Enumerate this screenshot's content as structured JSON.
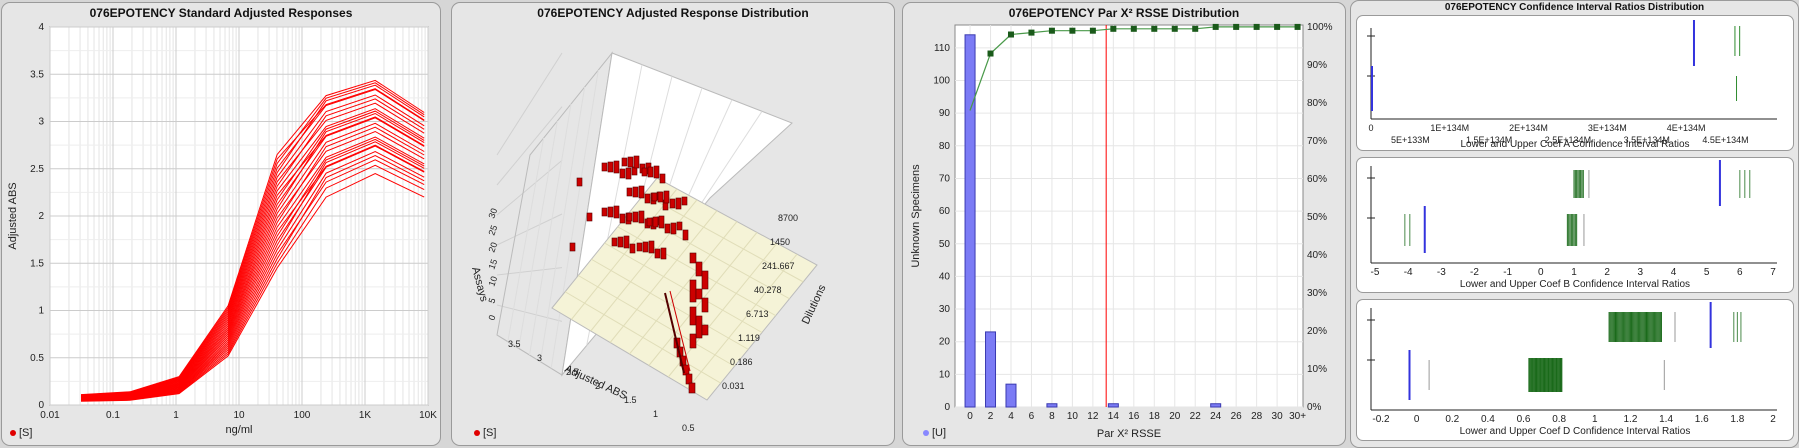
{
  "colors": {
    "red": "#ff0000",
    "blue": "#3333dd",
    "bar": "#7b7bf5",
    "green": "#2e8b2e",
    "darkgreen": "#1b6b1b",
    "panel": "#e6e6e6",
    "floor": "#f5f3d7"
  },
  "chart_data": [
    {
      "type": "line",
      "title": "076EPOTENCY Standard Adjusted Responses",
      "xlabel": "ng/ml",
      "ylabel": "Adjusted ABS",
      "xscale": "log",
      "xlim": [
        0.01,
        10000
      ],
      "ylim": [
        0,
        4
      ],
      "xticks": [
        "0.01",
        "0.1",
        "1",
        "10",
        "100",
        "1K",
        "10K"
      ],
      "yticks": [
        "0",
        "0.5",
        "1",
        "1.5",
        "2",
        "2.5",
        "3",
        "3.5",
        "4"
      ],
      "legend": "[S]",
      "x": [
        0.031,
        0.186,
        1.119,
        6.713,
        40.278,
        241.667,
        1450,
        8700
      ],
      "series_low": [
        0.04,
        0.05,
        0.12,
        0.52,
        1.45,
        2.2,
        2.45,
        2.2
      ],
      "series_high": [
        0.11,
        0.14,
        0.3,
        1.05,
        2.65,
        3.4,
        3.55,
        3.2
      ],
      "series_count": 26
    },
    {
      "type": "bar3d",
      "title": "076EPOTENCY Adjusted Response Distribution",
      "xlabel": "Adjusted ABS",
      "ylabel": "Dilutions",
      "zlabel": "Assays",
      "xticks": [
        "3.5",
        "3",
        "2.5",
        "2",
        "1.5",
        "1",
        "0.5"
      ],
      "yticks": [
        "0.031",
        "0.186",
        "1.119",
        "6.713",
        "40.278",
        "241.667",
        "1450",
        "8700"
      ],
      "zticks": [
        "0",
        "5",
        "10",
        "15",
        "20",
        "25",
        "30"
      ],
      "legend": "[S]"
    },
    {
      "type": "bar",
      "title": "076EPOTENCY Par X² RSSE Distribution",
      "xlabel": "Par X² RSSE",
      "ylabel": "Unknown Specimens",
      "categories": [
        "0",
        "2",
        "4",
        "6",
        "8",
        "10",
        "12",
        "14",
        "16",
        "18",
        "20",
        "22",
        "24",
        "26",
        "28",
        "30",
        "30+"
      ],
      "values": [
        114,
        23,
        7,
        0,
        1,
        0,
        0,
        1,
        0,
        0,
        0,
        0,
        1,
        0,
        0,
        0,
        0
      ],
      "cumulative_percent": [
        78,
        93,
        98,
        98.5,
        99,
        99,
        99,
        99.5,
        99.5,
        99.5,
        99.5,
        99.5,
        100,
        100,
        100,
        100,
        100
      ],
      "yticks": [
        "0",
        "10",
        "20",
        "30",
        "40",
        "50",
        "60",
        "70",
        "80",
        "90",
        "100",
        "110"
      ],
      "y2ticks": [
        "0%",
        "10%",
        "20%",
        "30%",
        "40%",
        "50%",
        "60%",
        "70%",
        "80%",
        "90%",
        "100%"
      ],
      "ylim": [
        0,
        117
      ],
      "threshold_x": 13.3,
      "legend": "[U]"
    },
    {
      "type": "strip",
      "title": "076EPOTENCY Confidence Interval Ratios Distribution",
      "panels": [
        {
          "xlabel": "Lower and Upper Coef A Confidence Interval Ratios",
          "ticks_top": [
            "0",
            "1E+134M",
            "2E+134M",
            "3E+134M",
            "4E+134M"
          ],
          "ticks_bottom": [
            "5E+133M",
            "1.5E+134M",
            "2.5E+134M",
            "3.5E+134M",
            "4.5E+134M"
          ],
          "blue_lines": [
            0.0,
            4.1
          ],
          "green_lines_upper": [
            4.62,
            4.68
          ],
          "green_lines_lower": [
            4.64
          ]
        },
        {
          "xlabel": "Lower and Upper Coef B Confidence Interval Ratios",
          "ticks": [
            "-5",
            "-4",
            "-3",
            "-2",
            "-1",
            "0",
            "1",
            "2",
            "3",
            "4",
            "5",
            "6",
            "7"
          ],
          "blue_lines": [
            -3.5,
            5.4
          ],
          "green_upper": [
            1.0,
            1.3
          ],
          "green_lower": [
            0.8,
            1.1
          ],
          "gray_lines": [
            -4.1,
            6.0,
            6.3
          ]
        },
        {
          "xlabel": "Lower and Upper Coef D Confidence Interval Ratios",
          "ticks": [
            "-0.2",
            "0",
            "0.2",
            "0.4",
            "0.6",
            "0.8",
            "1",
            "1.2",
            "1.4",
            "1.6",
            "1.8",
            "2"
          ],
          "blue_lines": [
            -0.04,
            1.65
          ],
          "green_upper": [
            1.08,
            1.38
          ],
          "green_lower": [
            0.63,
            0.82
          ],
          "gray_lines": [
            0.07,
            1.4,
            1.78,
            1.82
          ]
        }
      ]
    }
  ]
}
